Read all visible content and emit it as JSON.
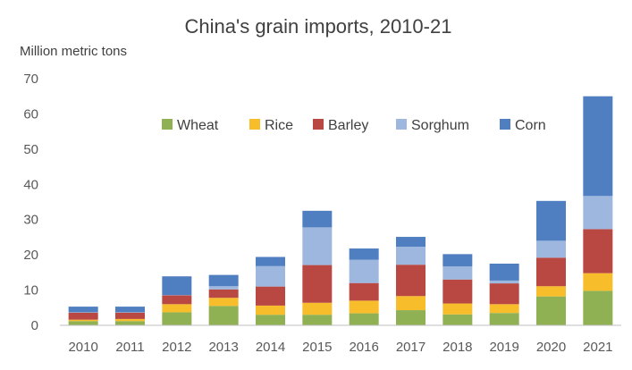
{
  "chart_data": {
    "type": "bar",
    "stacked": true,
    "title": "China's grain imports, 2010-21",
    "ylabel": "Million metric tons",
    "xlabel": "",
    "ylim": [
      0,
      70
    ],
    "yticks": [
      0,
      10,
      20,
      30,
      40,
      50,
      60,
      70
    ],
    "grid": false,
    "legend": "top-center",
    "categories": [
      "2010",
      "2011",
      "2012",
      "2013",
      "2014",
      "2015",
      "2016",
      "2017",
      "2018",
      "2019",
      "2020",
      "2021"
    ],
    "series": [
      {
        "name": "Wheat",
        "color": "#8fb153",
        "values": [
          1.2,
          1.2,
          3.7,
          5.5,
          3.0,
          3.0,
          3.4,
          4.3,
          3.1,
          3.5,
          8.2,
          9.8
        ]
      },
      {
        "name": "Rice",
        "color": "#f7bd2b",
        "values": [
          0.4,
          0.6,
          2.3,
          2.3,
          2.6,
          3.4,
          3.6,
          4.0,
          3.1,
          2.5,
          2.9,
          5.0
        ]
      },
      {
        "name": "Barley",
        "color": "#b94843",
        "values": [
          2.0,
          1.8,
          2.5,
          2.4,
          5.4,
          10.7,
          5.0,
          8.9,
          6.8,
          5.9,
          8.1,
          12.5
        ]
      },
      {
        "name": "Sorghum",
        "color": "#9db7df",
        "values": [
          0.1,
          0.1,
          0.1,
          0.9,
          5.8,
          10.7,
          6.6,
          5.1,
          3.7,
          0.8,
          4.8,
          9.4
        ]
      },
      {
        "name": "Corn",
        "color": "#4f7ec1",
        "values": [
          1.6,
          1.6,
          5.3,
          3.2,
          2.6,
          4.7,
          3.2,
          2.8,
          3.5,
          4.8,
          11.3,
          28.3
        ]
      }
    ]
  }
}
